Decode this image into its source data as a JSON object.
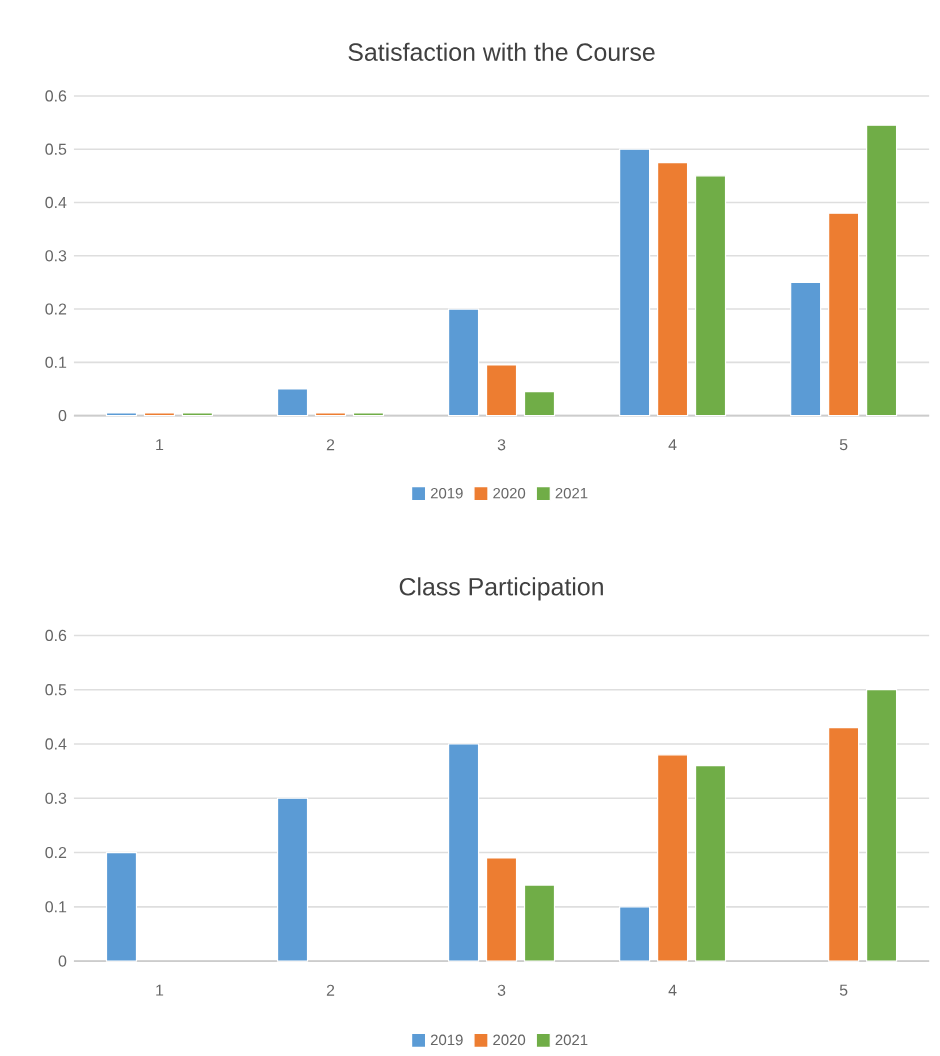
{
  "chart_data": [
    {
      "type": "bar",
      "title": "Satisfaction with the Course",
      "categories": [
        "1",
        "2",
        "3",
        "4",
        "5"
      ],
      "series": [
        {
          "name": "2019",
          "color": "#5b9bd5",
          "values": [
            0.005,
            0.05,
            0.2,
            0.5,
            0.25
          ]
        },
        {
          "name": "2020",
          "color": "#ed7d31",
          "values": [
            0.005,
            0.005,
            0.095,
            0.475,
            0.38
          ]
        },
        {
          "name": "2021",
          "color": "#70ad47",
          "values": [
            0.005,
            0.005,
            0.045,
            0.45,
            0.545
          ]
        }
      ],
      "ylim": [
        0,
        0.6
      ],
      "yticks": [
        0,
        0.1,
        0.2,
        0.3,
        0.4,
        0.5,
        0.6
      ],
      "grid": "y",
      "legend": "bottom"
    },
    {
      "type": "bar",
      "title": "Class Participation",
      "categories": [
        "1",
        "2",
        "3",
        "4",
        "5"
      ],
      "series": [
        {
          "name": "2019",
          "color": "#5b9bd5",
          "values": [
            0.2,
            0.3,
            0.4,
            0.1,
            null
          ]
        },
        {
          "name": "2020",
          "color": "#ed7d31",
          "values": [
            null,
            null,
            0.19,
            0.38,
            0.43
          ]
        },
        {
          "name": "2021",
          "color": "#70ad47",
          "values": [
            null,
            null,
            0.14,
            0.36,
            0.5
          ]
        }
      ],
      "ylim": [
        0,
        0.6
      ],
      "yticks": [
        0,
        0.1,
        0.2,
        0.3,
        0.4,
        0.5,
        0.6
      ],
      "grid": "y",
      "legend": "bottom"
    }
  ]
}
